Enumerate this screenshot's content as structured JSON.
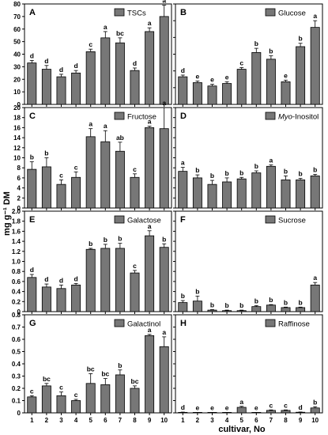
{
  "y_axis_label": "mg g⁻¹ DM",
  "x_axis_label": "cultivar, No",
  "bar_color": "#777777",
  "chart_data": [
    {
      "type": "bar",
      "panel": "A",
      "legend": "TSCs",
      "categories": [
        "1",
        "2",
        "3",
        "4",
        "5",
        "6",
        "7",
        "8",
        "9",
        "10"
      ],
      "values": [
        33,
        28,
        22,
        25,
        42,
        53,
        49,
        27,
        58,
        70
      ],
      "errors": [
        2,
        3,
        2,
        2,
        2,
        5,
        4,
        2,
        3,
        9
      ],
      "letters": [
        "d",
        "d",
        "d",
        "d",
        "c",
        "a",
        "bc",
        "d",
        "a",
        "a"
      ],
      "ylim": [
        0,
        80
      ],
      "yticks": [
        "0",
        "10",
        "20",
        "30",
        "40",
        "50",
        "60",
        "70",
        "80"
      ]
    },
    {
      "type": "bar",
      "panel": "B",
      "legend": "Glucose",
      "categories": [
        "1",
        "2",
        "3",
        "4",
        "5",
        "6",
        "7",
        "8",
        "9",
        "10"
      ],
      "values": [
        16.5,
        13,
        11,
        12.5,
        21,
        31,
        27,
        13.5,
        34.5,
        46
      ],
      "errors": [
        1,
        1,
        1,
        1,
        1,
        2.5,
        2,
        1,
        2,
        4
      ],
      "letters": [
        "d",
        "e",
        "e",
        "e",
        "c",
        "b",
        "b",
        "e",
        "b",
        "a"
      ],
      "ylim": [
        0,
        60
      ],
      "yticks": [
        "0",
        "10",
        "20",
        "30",
        "40",
        "50",
        "60"
      ]
    },
    {
      "type": "bar",
      "panel": "C",
      "legend": "Fructose",
      "categories": [
        "1",
        "2",
        "3",
        "4",
        "5",
        "6",
        "7",
        "8",
        "9",
        "10"
      ],
      "values": [
        7.7,
        8.2,
        4.7,
        6.1,
        14.2,
        13.2,
        11.3,
        6.1,
        16.0,
        15.8
      ],
      "errors": [
        1.5,
        1.8,
        0.9,
        1.1,
        1.6,
        2.2,
        1.8,
        0.7,
        0.3,
        4.2
      ],
      "letters": [
        "b",
        "b",
        "c",
        "c",
        "a",
        "a",
        "ab",
        "c",
        "a",
        "a"
      ],
      "ylim": [
        0,
        20
      ],
      "yticks": [
        "0",
        "2",
        "4",
        "6",
        "8",
        "10",
        "12",
        "14",
        "16",
        "18",
        "20"
      ]
    },
    {
      "type": "bar",
      "panel": "D",
      "legend": "Myo-Inositol",
      "legend_italic_part": "Myo",
      "legend_rest": "-Inositol",
      "categories": [
        "1",
        "2",
        "3",
        "4",
        "5",
        "6",
        "7",
        "8",
        "9",
        "10"
      ],
      "values": [
        7.3,
        6.0,
        4.7,
        5.2,
        5.8,
        7.0,
        8.3,
        5.6,
        5.6,
        6.4
      ],
      "errors": [
        0.8,
        0.6,
        0.8,
        0.8,
        0.3,
        0.4,
        0.3,
        0.8,
        0.3,
        0.3
      ],
      "letters": [
        "a",
        "b",
        "b",
        "b",
        "b",
        "b",
        "a",
        "b",
        "b",
        "b"
      ],
      "ylim": [
        0,
        20
      ],
      "yticks": [
        "0",
        "2",
        "4",
        "6",
        "8",
        "10",
        "12",
        "14",
        "16",
        "18",
        "20"
      ]
    },
    {
      "type": "bar",
      "panel": "E",
      "legend": "Galactose",
      "categories": [
        "1",
        "2",
        "3",
        "4",
        "5",
        "6",
        "7",
        "8",
        "9",
        "10"
      ],
      "values": [
        0.68,
        0.49,
        0.46,
        0.53,
        1.24,
        1.26,
        1.26,
        0.77,
        1.51,
        1.28
      ],
      "errors": [
        0.06,
        0.06,
        0.07,
        0.03,
        0.02,
        0.08,
        0.1,
        0.05,
        0.1,
        0.07
      ],
      "letters": [
        "d",
        "d",
        "d",
        "d",
        "b",
        "b",
        "b",
        "c",
        "a",
        "b"
      ],
      "ylim": [
        0,
        2.0
      ],
      "yticks": [
        "0",
        "0.2",
        "0.4",
        "0.6",
        "0.8",
        "1.0",
        "1.2",
        "1.4",
        "1.6",
        "1.8",
        "2.0"
      ]
    },
    {
      "type": "bar",
      "panel": "F",
      "legend": "Sucrose",
      "categories": [
        "1",
        "2",
        "3",
        "4",
        "5",
        "6",
        "7",
        "8",
        "9",
        "10"
      ],
      "values": [
        0.18,
        0.21,
        0.03,
        0.02,
        0.02,
        0.1,
        0.13,
        0.08,
        0.08,
        0.53
      ],
      "errors": [
        0.04,
        0.1,
        0.01,
        0.01,
        0.01,
        0.02,
        0.01,
        0.01,
        0.01,
        0.05
      ],
      "letters": [
        "b",
        "b",
        "b",
        "b",
        "b",
        "b",
        "b",
        "b",
        "b",
        "a"
      ],
      "ylim": [
        0,
        2.0
      ],
      "yticks": [
        "0",
        "0.2",
        "0.4",
        "0.6",
        "0.8",
        "1.0",
        "1.2",
        "1.4",
        "1.6",
        "1.8",
        "2.0"
      ]
    },
    {
      "type": "bar",
      "panel": "G",
      "legend": "Galactinol",
      "categories": [
        "1",
        "2",
        "3",
        "4",
        "5",
        "6",
        "7",
        "8",
        "9",
        "10"
      ],
      "values": [
        0.13,
        0.22,
        0.14,
        0.1,
        0.24,
        0.23,
        0.31,
        0.2,
        0.63,
        0.54
      ],
      "errors": [
        0.01,
        0.02,
        0.03,
        0.01,
        0.08,
        0.05,
        0.04,
        0.02,
        0.01,
        0.08
      ],
      "letters": [
        "c",
        "bc",
        "c",
        "c",
        "bc",
        "bc",
        "b",
        "bc",
        "a",
        "a"
      ],
      "ylim": [
        0,
        0.8
      ],
      "yticks": [
        "0",
        "0.1",
        "0.2",
        "0.3",
        "0.4",
        "0.5",
        "0.6",
        "0.7",
        "0.8"
      ]
    },
    {
      "type": "bar",
      "panel": "H",
      "legend": "Raffinose",
      "categories": [
        "1",
        "2",
        "3",
        "4",
        "5",
        "6",
        "7",
        "8",
        "9",
        "10"
      ],
      "values": [
        0.004,
        0.003,
        0.003,
        0.003,
        0.045,
        0.003,
        0.02,
        0.02,
        0.005,
        0.04
      ],
      "errors": [
        0.002,
        0.001,
        0.001,
        0.001,
        0.008,
        0.001,
        0.004,
        0.004,
        0.002,
        0.01
      ],
      "letters": [
        "d",
        "e",
        "e",
        "e",
        "a",
        "e",
        "c",
        "c",
        "d",
        "b"
      ],
      "ylim": [
        0,
        0.8
      ],
      "yticks": [
        "0",
        "0.1",
        "0.2",
        "0.3",
        "0.4",
        "0.5",
        "0.6",
        "0.7",
        "0.8"
      ]
    }
  ]
}
